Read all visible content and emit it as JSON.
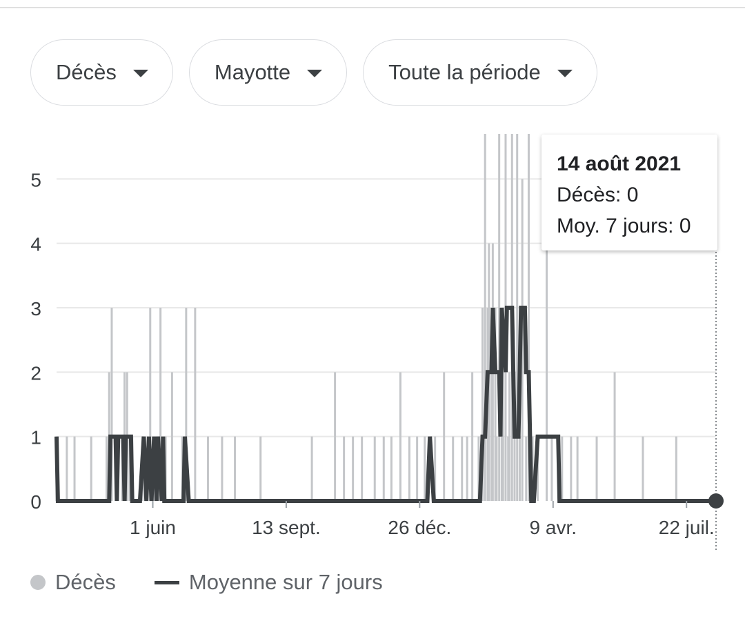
{
  "filters": {
    "metric": "Décès",
    "region": "Mayotte",
    "period": "Toute la période"
  },
  "tooltip": {
    "date": "14 août 2021",
    "deaths_label": "Décès: 0",
    "avg_label": "Moy. 7 jours: 0"
  },
  "legend": {
    "deaths": "Décès",
    "average": "Moyenne sur 7 jours"
  },
  "colors": {
    "bars": "#c4c6c9",
    "line": "#3c4043",
    "grid": "#e8e8e8"
  },
  "chart_data": {
    "type": "bar",
    "title": "",
    "xlabel": "",
    "ylabel": "",
    "x_range": [
      "2020-03-18",
      "2021-08-14"
    ],
    "ylim": [
      0,
      5.7
    ],
    "yticks": [
      0,
      1,
      2,
      3,
      4,
      5
    ],
    "xticks": [
      {
        "date": "2020-06-01",
        "label": "1 juin"
      },
      {
        "date": "2020-09-13",
        "label": "13 sept."
      },
      {
        "date": "2020-12-26",
        "label": "26 déc."
      },
      {
        "date": "2021-04-09",
        "label": "9 avr."
      },
      {
        "date": "2021-07-22",
        "label": "22 juil."
      }
    ],
    "grid": true,
    "legend_position": "bottom-left",
    "series": [
      {
        "name": "Décès",
        "type": "bar",
        "points": [
          [
            "2020-03-18",
            1
          ],
          [
            "2020-03-26",
            1
          ],
          [
            "2020-04-01",
            1
          ],
          [
            "2020-04-14",
            1
          ],
          [
            "2020-04-26",
            1
          ],
          [
            "2020-04-28",
            2
          ],
          [
            "2020-04-30",
            3
          ],
          [
            "2020-05-04",
            1
          ],
          [
            "2020-05-08",
            1
          ],
          [
            "2020-05-10",
            2
          ],
          [
            "2020-05-12",
            2
          ],
          [
            "2020-05-14",
            1
          ],
          [
            "2020-05-16",
            1
          ],
          [
            "2020-05-24",
            1
          ],
          [
            "2020-05-30",
            3
          ],
          [
            "2020-06-02",
            1
          ],
          [
            "2020-06-04",
            1
          ],
          [
            "2020-06-07",
            3
          ],
          [
            "2020-06-11",
            1
          ],
          [
            "2020-06-16",
            2
          ],
          [
            "2020-06-24",
            1
          ],
          [
            "2020-06-27",
            3
          ],
          [
            "2020-07-04",
            3
          ],
          [
            "2020-07-14",
            1
          ],
          [
            "2020-07-25",
            1
          ],
          [
            "2020-08-04",
            1
          ],
          [
            "2020-08-24",
            1
          ],
          [
            "2020-10-03",
            1
          ],
          [
            "2020-10-21",
            2
          ],
          [
            "2020-10-28",
            1
          ],
          [
            "2020-11-04",
            1
          ],
          [
            "2020-11-11",
            1
          ],
          [
            "2020-11-21",
            1
          ],
          [
            "2020-11-28",
            1
          ],
          [
            "2020-12-04",
            1
          ],
          [
            "2020-12-11",
            2
          ],
          [
            "2020-12-18",
            1
          ],
          [
            "2020-12-24",
            1
          ],
          [
            "2020-12-30",
            1
          ],
          [
            "2021-01-07",
            1
          ],
          [
            "2021-01-14",
            2
          ],
          [
            "2021-01-21",
            1
          ],
          [
            "2021-01-28",
            1
          ],
          [
            "2021-02-01",
            1
          ],
          [
            "2021-02-05",
            2
          ],
          [
            "2021-02-10",
            1
          ],
          [
            "2021-02-13",
            3
          ],
          [
            "2021-02-15",
            6
          ],
          [
            "2021-02-17",
            3
          ],
          [
            "2021-02-18",
            4
          ],
          [
            "2021-02-20",
            2
          ],
          [
            "2021-02-21",
            4
          ],
          [
            "2021-02-23",
            3
          ],
          [
            "2021-02-24",
            1
          ],
          [
            "2021-02-26",
            6
          ],
          [
            "2021-02-28",
            3
          ],
          [
            "2021-03-01",
            2
          ],
          [
            "2021-03-03",
            6
          ],
          [
            "2021-03-05",
            1
          ],
          [
            "2021-03-06",
            2
          ],
          [
            "2021-03-08",
            6
          ],
          [
            "2021-03-10",
            2
          ],
          [
            "2021-03-12",
            6
          ],
          [
            "2021-03-14",
            1
          ],
          [
            "2021-03-16",
            5
          ],
          [
            "2021-03-19",
            1
          ],
          [
            "2021-03-21",
            6
          ],
          [
            "2021-03-24",
            1
          ],
          [
            "2021-03-28",
            1
          ],
          [
            "2021-04-04",
            5
          ],
          [
            "2021-04-08",
            1
          ],
          [
            "2021-04-16",
            1
          ],
          [
            "2021-04-23",
            1
          ],
          [
            "2021-04-28",
            1
          ],
          [
            "2021-05-13",
            1
          ],
          [
            "2021-05-27",
            2
          ],
          [
            "2021-06-18",
            1
          ],
          [
            "2021-07-14",
            1
          ],
          [
            "2021-08-14",
            0
          ]
        ]
      },
      {
        "name": "Moyenne sur 7 jours",
        "type": "line",
        "points": [
          [
            "2020-03-18",
            1
          ],
          [
            "2020-03-19",
            0
          ],
          [
            "2020-04-28",
            0
          ],
          [
            "2020-04-29",
            1
          ],
          [
            "2020-05-03",
            1
          ],
          [
            "2020-05-04",
            0
          ],
          [
            "2020-05-05",
            1
          ],
          [
            "2020-05-09",
            1
          ],
          [
            "2020-05-10",
            0
          ],
          [
            "2020-05-11",
            1
          ],
          [
            "2020-05-15",
            1
          ],
          [
            "2020-05-16",
            0
          ],
          [
            "2020-05-22",
            0
          ],
          [
            "2020-05-25",
            1
          ],
          [
            "2020-05-27",
            0
          ],
          [
            "2020-05-29",
            1
          ],
          [
            "2020-05-31",
            0
          ],
          [
            "2020-06-02",
            1
          ],
          [
            "2020-06-04",
            0
          ],
          [
            "2020-06-05",
            1
          ],
          [
            "2020-06-08",
            0
          ],
          [
            "2020-06-09",
            1
          ],
          [
            "2020-06-10",
            0
          ],
          [
            "2020-06-25",
            0
          ],
          [
            "2020-06-26",
            1
          ],
          [
            "2020-06-29",
            0
          ],
          [
            "2021-01-01",
            0
          ],
          [
            "2021-01-03",
            1
          ],
          [
            "2021-01-06",
            0
          ],
          [
            "2021-02-11",
            0
          ],
          [
            "2021-02-13",
            1
          ],
          [
            "2021-02-15",
            1
          ],
          [
            "2021-02-17",
            2
          ],
          [
            "2021-02-20",
            2
          ],
          [
            "2021-02-21",
            3
          ],
          [
            "2021-02-23",
            2
          ],
          [
            "2021-02-26",
            2
          ],
          [
            "2021-02-27",
            1
          ],
          [
            "2021-02-28",
            3
          ],
          [
            "2021-03-03",
            2
          ],
          [
            "2021-03-04",
            3
          ],
          [
            "2021-03-08",
            3
          ],
          [
            "2021-03-09",
            2
          ],
          [
            "2021-03-10",
            1
          ],
          [
            "2021-03-13",
            1
          ],
          [
            "2021-03-15",
            3
          ],
          [
            "2021-03-18",
            3
          ],
          [
            "2021-03-19",
            2
          ],
          [
            "2021-03-21",
            2
          ],
          [
            "2021-03-23",
            0
          ],
          [
            "2021-03-25",
            0
          ],
          [
            "2021-03-28",
            1
          ],
          [
            "2021-04-13",
            1
          ],
          [
            "2021-04-14",
            0
          ],
          [
            "2021-08-14",
            0
          ]
        ]
      }
    ]
  }
}
